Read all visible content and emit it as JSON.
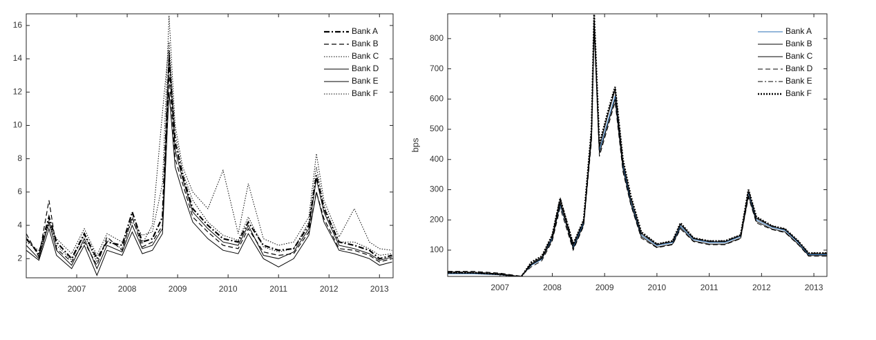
{
  "chart_data": [
    {
      "type": "line",
      "xlim": [
        2006,
        2013.27
      ],
      "xticks": [
        2007,
        2008,
        2009,
        2010,
        2011,
        2012,
        2013
      ],
      "ylim": [
        0.85,
        16.7
      ],
      "yticks": [
        2,
        4,
        6,
        8,
        10,
        12,
        14,
        16
      ],
      "legend": "upper-right",
      "x": [
        2006.0,
        2006.25,
        2006.45,
        2006.6,
        2006.9,
        2007.15,
        2007.4,
        2007.6,
        2007.9,
        2008.1,
        2008.3,
        2008.5,
        2008.7,
        2008.83,
        2008.95,
        2009.1,
        2009.3,
        2009.6,
        2009.9,
        2010.2,
        2010.4,
        2010.7,
        2011.0,
        2011.3,
        2011.6,
        2011.75,
        2011.9,
        2012.2,
        2012.5,
        2012.8,
        2013.0,
        2013.25
      ],
      "series": [
        {
          "name": "Bank A",
          "color": "#000000",
          "dash": "8 3 2 3",
          "width": 2.2,
          "values": [
            3.2,
            2.3,
            4.5,
            3.0,
            2.0,
            3.5,
            2.0,
            3.0,
            2.8,
            4.8,
            3.0,
            3.2,
            4.5,
            14.0,
            9.0,
            7.0,
            5.0,
            4.0,
            3.2,
            3.0,
            4.2,
            2.8,
            2.5,
            2.6,
            4.0,
            7.0,
            5.0,
            3.0,
            2.8,
            2.5,
            2.0,
            2.2
          ]
        },
        {
          "name": "Bank B",
          "color": "#000000",
          "dash": "7 4",
          "width": 1.2,
          "values": [
            3.5,
            2.1,
            5.5,
            2.6,
            1.8,
            3.0,
            1.6,
            3.3,
            2.5,
            4.5,
            2.7,
            3.0,
            4.0,
            13.0,
            8.0,
            6.5,
            4.5,
            3.6,
            2.8,
            2.6,
            3.8,
            2.4,
            2.2,
            2.3,
            3.6,
            6.0,
            4.4,
            2.6,
            2.5,
            2.2,
            1.8,
            2.0
          ]
        },
        {
          "name": "Bank C",
          "color": "#000000",
          "dash": "1.5 2",
          "width": 1,
          "values": [
            3.0,
            2.5,
            4.0,
            3.2,
            2.3,
            3.8,
            2.2,
            3.5,
            3.0,
            4.2,
            3.4,
            3.6,
            6.5,
            16.6,
            10.0,
            7.5,
            6.0,
            5.0,
            7.3,
            3.5,
            6.5,
            3.2,
            2.8,
            3.0,
            4.5,
            8.3,
            5.5,
            3.3,
            5.0,
            3.0,
            2.6,
            2.5
          ]
        },
        {
          "name": "Bank D",
          "color": "#000000",
          "dash": "",
          "width": 1,
          "values": [
            2.8,
            2.0,
            4.2,
            2.5,
            1.6,
            3.2,
            1.4,
            2.8,
            2.4,
            4.0,
            2.6,
            2.8,
            3.8,
            14.5,
            8.5,
            6.8,
            4.8,
            3.8,
            3.0,
            2.8,
            4.0,
            2.2,
            2.0,
            2.4,
            3.8,
            6.8,
            4.8,
            2.8,
            2.6,
            2.3,
            1.9,
            2.1
          ]
        },
        {
          "name": "Bank E",
          "color": "#000000",
          "dash": "",
          "width": 1,
          "values": [
            2.5,
            1.9,
            3.8,
            2.2,
            1.4,
            2.8,
            1.0,
            2.5,
            2.2,
            3.6,
            2.3,
            2.5,
            3.5,
            12.0,
            7.5,
            6.0,
            4.2,
            3.2,
            2.5,
            2.3,
            3.5,
            2.0,
            1.5,
            2.0,
            3.4,
            6.0,
            4.2,
            2.5,
            2.3,
            2.0,
            1.6,
            1.8
          ]
        },
        {
          "name": "Bank F",
          "color": "#000000",
          "dash": "1.5 2",
          "width": 1,
          "values": [
            3.3,
            2.2,
            4.3,
            2.8,
            1.9,
            3.4,
            1.8,
            3.1,
            2.6,
            4.4,
            2.9,
            4.0,
            10.8,
            15.0,
            9.5,
            7.2,
            5.5,
            4.2,
            3.4,
            3.1,
            4.5,
            2.7,
            2.4,
            2.6,
            4.2,
            7.5,
            5.2,
            3.0,
            3.0,
            2.6,
            2.2,
            2.3
          ]
        }
      ]
    },
    {
      "type": "line",
      "ylabel": "bps",
      "xlim": [
        2006,
        2013.25
      ],
      "xticks": [
        2007,
        2008,
        2009,
        2010,
        2011,
        2012,
        2013
      ],
      "ylim": [
        13,
        882
      ],
      "yticks": [
        100,
        200,
        300,
        400,
        500,
        600,
        700,
        800
      ],
      "legend": "upper-right",
      "x": [
        2006.0,
        2006.5,
        2007.0,
        2007.4,
        2007.6,
        2007.8,
        2008.0,
        2008.15,
        2008.4,
        2008.6,
        2008.75,
        2008.8,
        2008.9,
        2009.05,
        2009.2,
        2009.35,
        2009.5,
        2009.7,
        2010.0,
        2010.3,
        2010.45,
        2010.7,
        2011.0,
        2011.3,
        2011.6,
        2011.75,
        2011.9,
        2012.2,
        2012.45,
        2012.7,
        2012.9,
        2013.25
      ],
      "series": [
        {
          "name": "Bank A",
          "color": "#2a6fb5",
          "dash": "",
          "width": 1,
          "values": [
            22,
            22,
            18,
            12,
            50,
            70,
            140,
            250,
            110,
            190,
            480,
            850,
            430,
            520,
            610,
            380,
            260,
            150,
            115,
            125,
            180,
            135,
            125,
            125,
            145,
            290,
            200,
            175,
            165,
            125,
            85,
            85
          ]
        },
        {
          "name": "Bank B",
          "color": "#000000",
          "dash": "",
          "width": 1,
          "values": [
            28,
            27,
            22,
            12,
            55,
            75,
            145,
            265,
            115,
            195,
            490,
            860,
            440,
            540,
            630,
            390,
            270,
            155,
            118,
            128,
            185,
            138,
            128,
            128,
            148,
            295,
            205,
            178,
            168,
            128,
            88,
            88
          ]
        },
        {
          "name": "Bank C",
          "color": "#000000",
          "dash": "",
          "width": 1,
          "values": [
            24,
            24,
            19,
            11,
            52,
            72,
            135,
            255,
            105,
            185,
            470,
            840,
            420,
            510,
            600,
            370,
            255,
            145,
            110,
            120,
            175,
            130,
            120,
            120,
            140,
            280,
            195,
            170,
            160,
            120,
            82,
            82
          ]
        },
        {
          "name": "Bank D",
          "color": "#000000",
          "dash": "7 4",
          "width": 1,
          "values": [
            30,
            30,
            24,
            14,
            45,
            65,
            130,
            240,
            100,
            180,
            460,
            830,
            410,
            500,
            590,
            360,
            250,
            140,
            108,
            118,
            170,
            128,
            118,
            118,
            138,
            275,
            190,
            168,
            158,
            118,
            80,
            80
          ]
        },
        {
          "name": "Bank E",
          "color": "#000000",
          "dash": "7 3 2 3",
          "width": 1,
          "values": [
            26,
            26,
            21,
            13,
            58,
            78,
            150,
            275,
            120,
            200,
            495,
            870,
            445,
            545,
            640,
            395,
            275,
            158,
            120,
            130,
            188,
            140,
            130,
            130,
            150,
            300,
            208,
            180,
            170,
            130,
            90,
            90
          ]
        },
        {
          "name": "Bank F",
          "color": "#000000",
          "dash": "2 2",
          "width": 2.5,
          "values": [
            25,
            25,
            20,
            10,
            60,
            80,
            150,
            270,
            120,
            200,
            500,
            880,
            450,
            550,
            640,
            400,
            280,
            160,
            120,
            130,
            190,
            140,
            130,
            130,
            150,
            300,
            210,
            180,
            170,
            130,
            90,
            90
          ]
        }
      ]
    }
  ]
}
